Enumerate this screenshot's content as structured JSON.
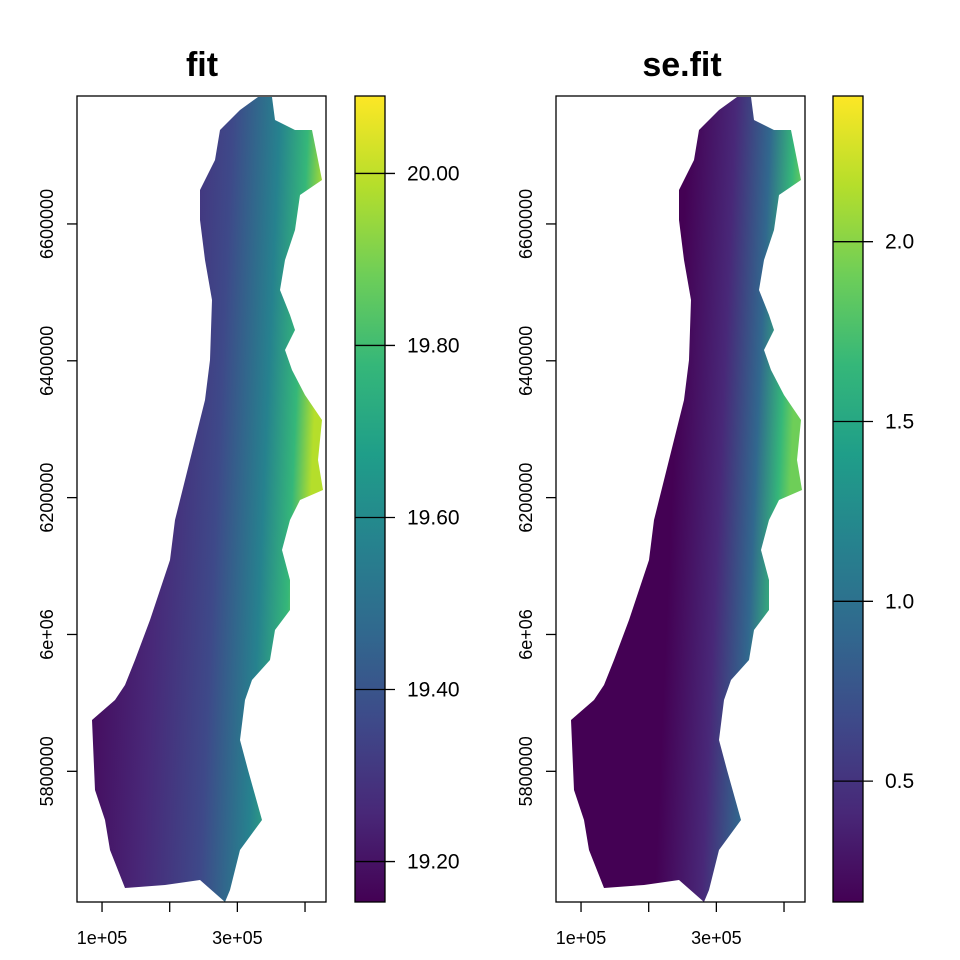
{
  "chart_data": [
    {
      "type": "heatmap",
      "title": "fit",
      "xlabel": "",
      "ylabel": "",
      "xlim": [
        63000,
        431000
      ],
      "ylim": [
        5609000,
        6787000
      ],
      "x_ticks": [
        100000,
        200000,
        300000,
        400000
      ],
      "x_tick_labels": [
        "1e+05",
        "",
        "3e+05",
        ""
      ],
      "y_ticks": [
        5800000,
        6000000,
        6200000,
        6400000,
        6600000
      ],
      "y_tick_labels": [
        "5800000",
        "6e+06",
        "6200000",
        "6400000",
        "6600000"
      ],
      "legend": {
        "type": "colorbar",
        "position": "right",
        "palette": "viridis",
        "range": [
          19.153,
          20.09
        ],
        "ticks": [
          19.2,
          19.4,
          19.6,
          19.8,
          20.0
        ],
        "tick_labels": [
          "19.20",
          "19.40",
          "19.60",
          "19.80",
          "20.00"
        ]
      },
      "value_pattern": "low (~19.15-19.3) in the central lowland, high (up to ~20.05) along the eastern mountain edge"
    },
    {
      "type": "heatmap",
      "title": "se.fit",
      "xlabel": "",
      "ylabel": "",
      "xlim": [
        63000,
        431000
      ],
      "ylim": [
        5609000,
        6787000
      ],
      "x_ticks": [
        100000,
        200000,
        300000,
        400000
      ],
      "x_tick_labels": [
        "1e+05",
        "",
        "3e+05",
        ""
      ],
      "y_ticks": [
        5800000,
        6000000,
        6200000,
        6400000,
        6600000
      ],
      "y_tick_labels": [
        "5800000",
        "6e+06",
        "6200000",
        "6400000",
        "6600000"
      ],
      "legend": {
        "type": "colorbar",
        "position": "right",
        "palette": "viridis",
        "range": [
          0.164,
          2.405
        ],
        "ticks": [
          0.5,
          1.0,
          1.5,
          2.0
        ],
        "tick_labels": [
          "0.5",
          "1.0",
          "1.5",
          "2.0"
        ]
      },
      "value_pattern": "low (~0.2-0.4) in most of the region, higher (up to ~2.2) along the eastern mountain edge"
    }
  ],
  "colors": {
    "viridis": [
      "#440154",
      "#482878",
      "#3e4989",
      "#31688e",
      "#26828e",
      "#1f9e89",
      "#35b779",
      "#6ece58",
      "#b5de2b",
      "#fde725"
    ]
  }
}
